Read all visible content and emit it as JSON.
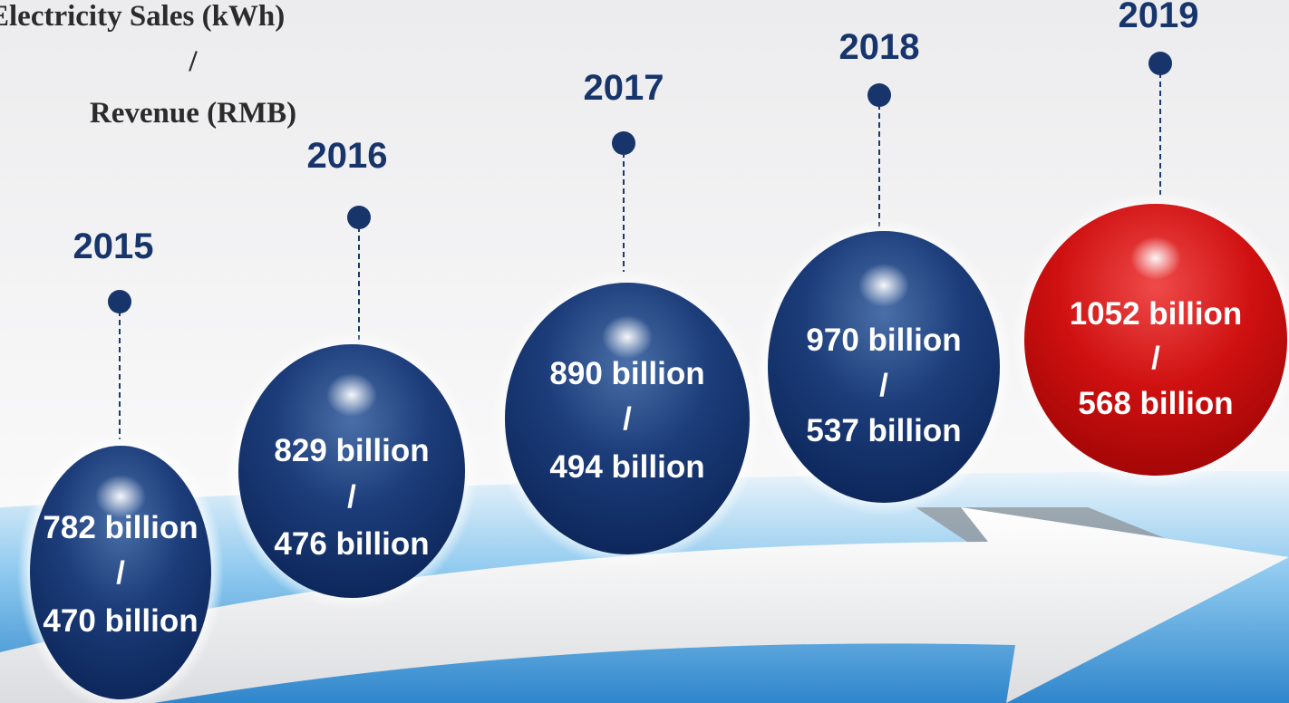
{
  "title": {
    "line1": "Electricity Sales (kWh)",
    "separator": "/",
    "line2": "Revenue (RMB)"
  },
  "items": [
    {
      "year": "2015",
      "sales": "782 billion",
      "separator": "/",
      "revenue": "470 billion"
    },
    {
      "year": "2016",
      "sales": "829 billion",
      "separator": "/",
      "revenue": "476 billion"
    },
    {
      "year": "2017",
      "sales": "890 billion",
      "separator": "/",
      "revenue": "494 billion"
    },
    {
      "year": "2018",
      "sales": "970 billion",
      "separator": "/",
      "revenue": "537 billion"
    },
    {
      "year": "2019",
      "sales": "1052 billion",
      "separator": "/",
      "revenue": "568 billion"
    }
  ]
}
